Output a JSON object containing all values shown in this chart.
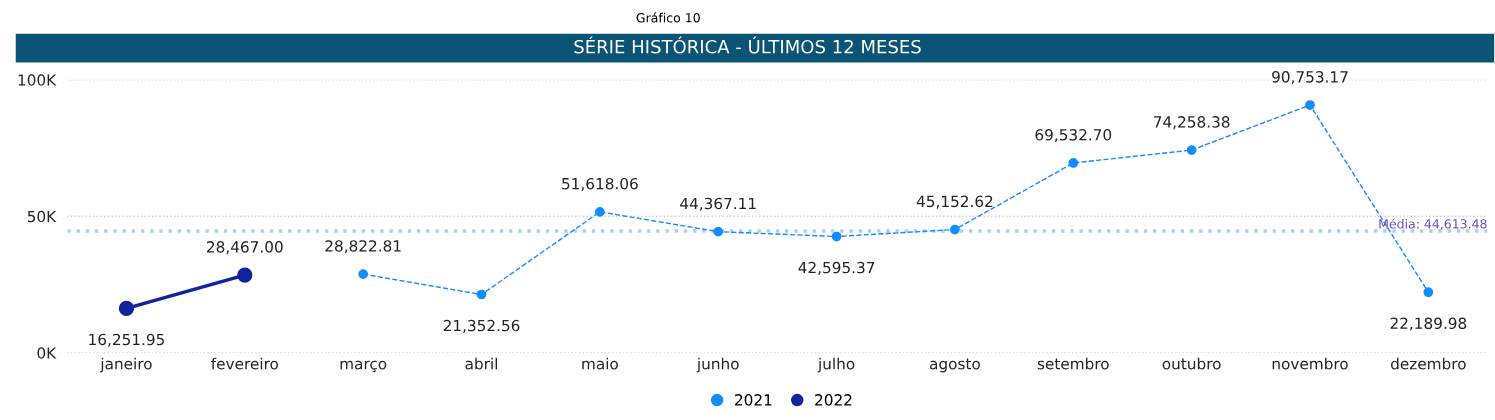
{
  "chart_data": {
    "type": "line",
    "title": "SÉRIE HISTÓRICA - ÚLTIMOS 12 MESES",
    "annotations": [
      "Gráfico 10"
    ],
    "categories": [
      "janeiro",
      "fevereiro",
      "março",
      "abril",
      "maio",
      "junho",
      "julho",
      "agosto",
      "setembro",
      "outubro",
      "novembro",
      "dezembro"
    ],
    "series": [
      {
        "name": "2021",
        "color": "#118dff",
        "line_style": "dashed",
        "values": [
          null,
          null,
          28822.81,
          21352.56,
          51618.06,
          44367.11,
          42595.37,
          45152.62,
          69532.7,
          74258.38,
          90753.17,
          22189.98
        ],
        "value_labels": [
          null,
          null,
          "28,822.81",
          "21,352.56",
          "51,618.06",
          "44,367.11",
          "42,595.37",
          "45,152.62",
          "69,532.70",
          "74,258.38",
          "90,753.17",
          "22,189.98"
        ]
      },
      {
        "name": "2022",
        "color": "#12239e",
        "line_style": "solid",
        "values": [
          16251.95,
          28467.0,
          null,
          null,
          null,
          null,
          null,
          null,
          null,
          null,
          null,
          null
        ],
        "value_labels": [
          "16,251.95",
          "28,467.00",
          null,
          null,
          null,
          null,
          null,
          null,
          null,
          null,
          null,
          null
        ]
      }
    ],
    "ylim": [
      0,
      100000
    ],
    "yticks": [
      {
        "value": 0,
        "label": "0K"
      },
      {
        "value": 50000,
        "label": "50K"
      },
      {
        "value": 100000,
        "label": "100K"
      }
    ],
    "ref_lines": [
      {
        "axis": "y",
        "value": 44613.48,
        "label": "Média: 44,613.48",
        "color": "#a9d0f5",
        "line_style": "dotted"
      }
    ],
    "grid": "y",
    "legend": "bottom",
    "marker": "circle"
  }
}
